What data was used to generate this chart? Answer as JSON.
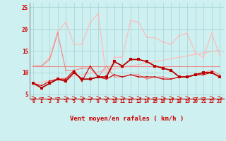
{
  "xlabel": "Vent moyen/en rafales ( km/h )",
  "background_color": "#cff0f0",
  "grid_color": "#a8d8d8",
  "x": [
    0,
    1,
    2,
    3,
    4,
    5,
    6,
    7,
    8,
    9,
    10,
    11,
    12,
    13,
    14,
    15,
    16,
    17,
    18,
    19,
    20,
    21,
    22,
    23
  ],
  "line_gust_light": [
    11.5,
    11.5,
    13.5,
    19.5,
    21.5,
    16.5,
    16.5,
    21.5,
    23.5,
    9.0,
    13.5,
    13.5,
    22.0,
    21.5,
    18.0,
    18.0,
    17.0,
    16.5,
    18.5,
    19.0,
    14.5,
    13.5,
    19.0,
    14.0
  ],
  "line_trend": [
    7.5,
    7.83,
    8.17,
    8.5,
    8.83,
    9.17,
    9.5,
    9.83,
    10.17,
    10.5,
    10.83,
    11.17,
    11.5,
    11.83,
    12.17,
    12.5,
    12.83,
    13.17,
    13.5,
    13.83,
    14.17,
    14.5,
    14.83,
    15.17
  ],
  "line_horiz": [
    11.5,
    11.5,
    11.5,
    11.5,
    11.5,
    11.5,
    11.5,
    11.5,
    11.5,
    11.5,
    11.5,
    11.5,
    11.5,
    11.5,
    11.5,
    11.5,
    11.5,
    11.5,
    11.5,
    11.5,
    11.5,
    11.5,
    11.5,
    11.5
  ],
  "line_gust_mid": [
    11.5,
    11.5,
    13.0,
    19.0,
    10.5,
    10.5,
    11.0,
    11.0,
    9.0,
    11.5,
    9.0,
    9.0,
    9.5,
    9.5,
    8.5,
    9.0,
    9.0,
    8.5,
    9.0,
    9.0,
    9.5,
    10.0,
    10.5,
    9.5
  ],
  "line_mean_dark": [
    7.5,
    7.0,
    8.0,
    8.5,
    8.5,
    10.5,
    8.0,
    11.5,
    9.0,
    8.5,
    9.5,
    9.0,
    9.5,
    9.0,
    9.0,
    9.0,
    8.5,
    8.5,
    9.0,
    9.0,
    9.5,
    9.5,
    10.0,
    9.0
  ],
  "line_main": [
    7.5,
    6.5,
    7.5,
    8.5,
    8.0,
    10.0,
    8.5,
    8.5,
    9.0,
    9.0,
    12.5,
    11.5,
    13.0,
    13.0,
    12.5,
    11.5,
    11.0,
    10.5,
    9.0,
    9.0,
    9.5,
    10.0,
    10.0,
    9.0
  ],
  "color_light_pink": "#ffb8b8",
  "color_mid_pink": "#ee8888",
  "color_mid_red": "#dd5555",
  "color_dark_red": "#cc1111",
  "color_main_red": "#bb0000",
  "arrow_angles": [
    0,
    45,
    0,
    45,
    0,
    0,
    0,
    0,
    0,
    0,
    0,
    0,
    0,
    0,
    0,
    45,
    0,
    0,
    0,
    0,
    45,
    45,
    0,
    0
  ],
  "ylim": [
    4,
    26
  ],
  "yticks": [
    5,
    10,
    15,
    20,
    25
  ],
  "xticks": [
    0,
    1,
    2,
    3,
    4,
    5,
    6,
    7,
    8,
    9,
    10,
    11,
    12,
    13,
    14,
    15,
    16,
    17,
    18,
    19,
    20,
    21,
    22,
    23
  ]
}
